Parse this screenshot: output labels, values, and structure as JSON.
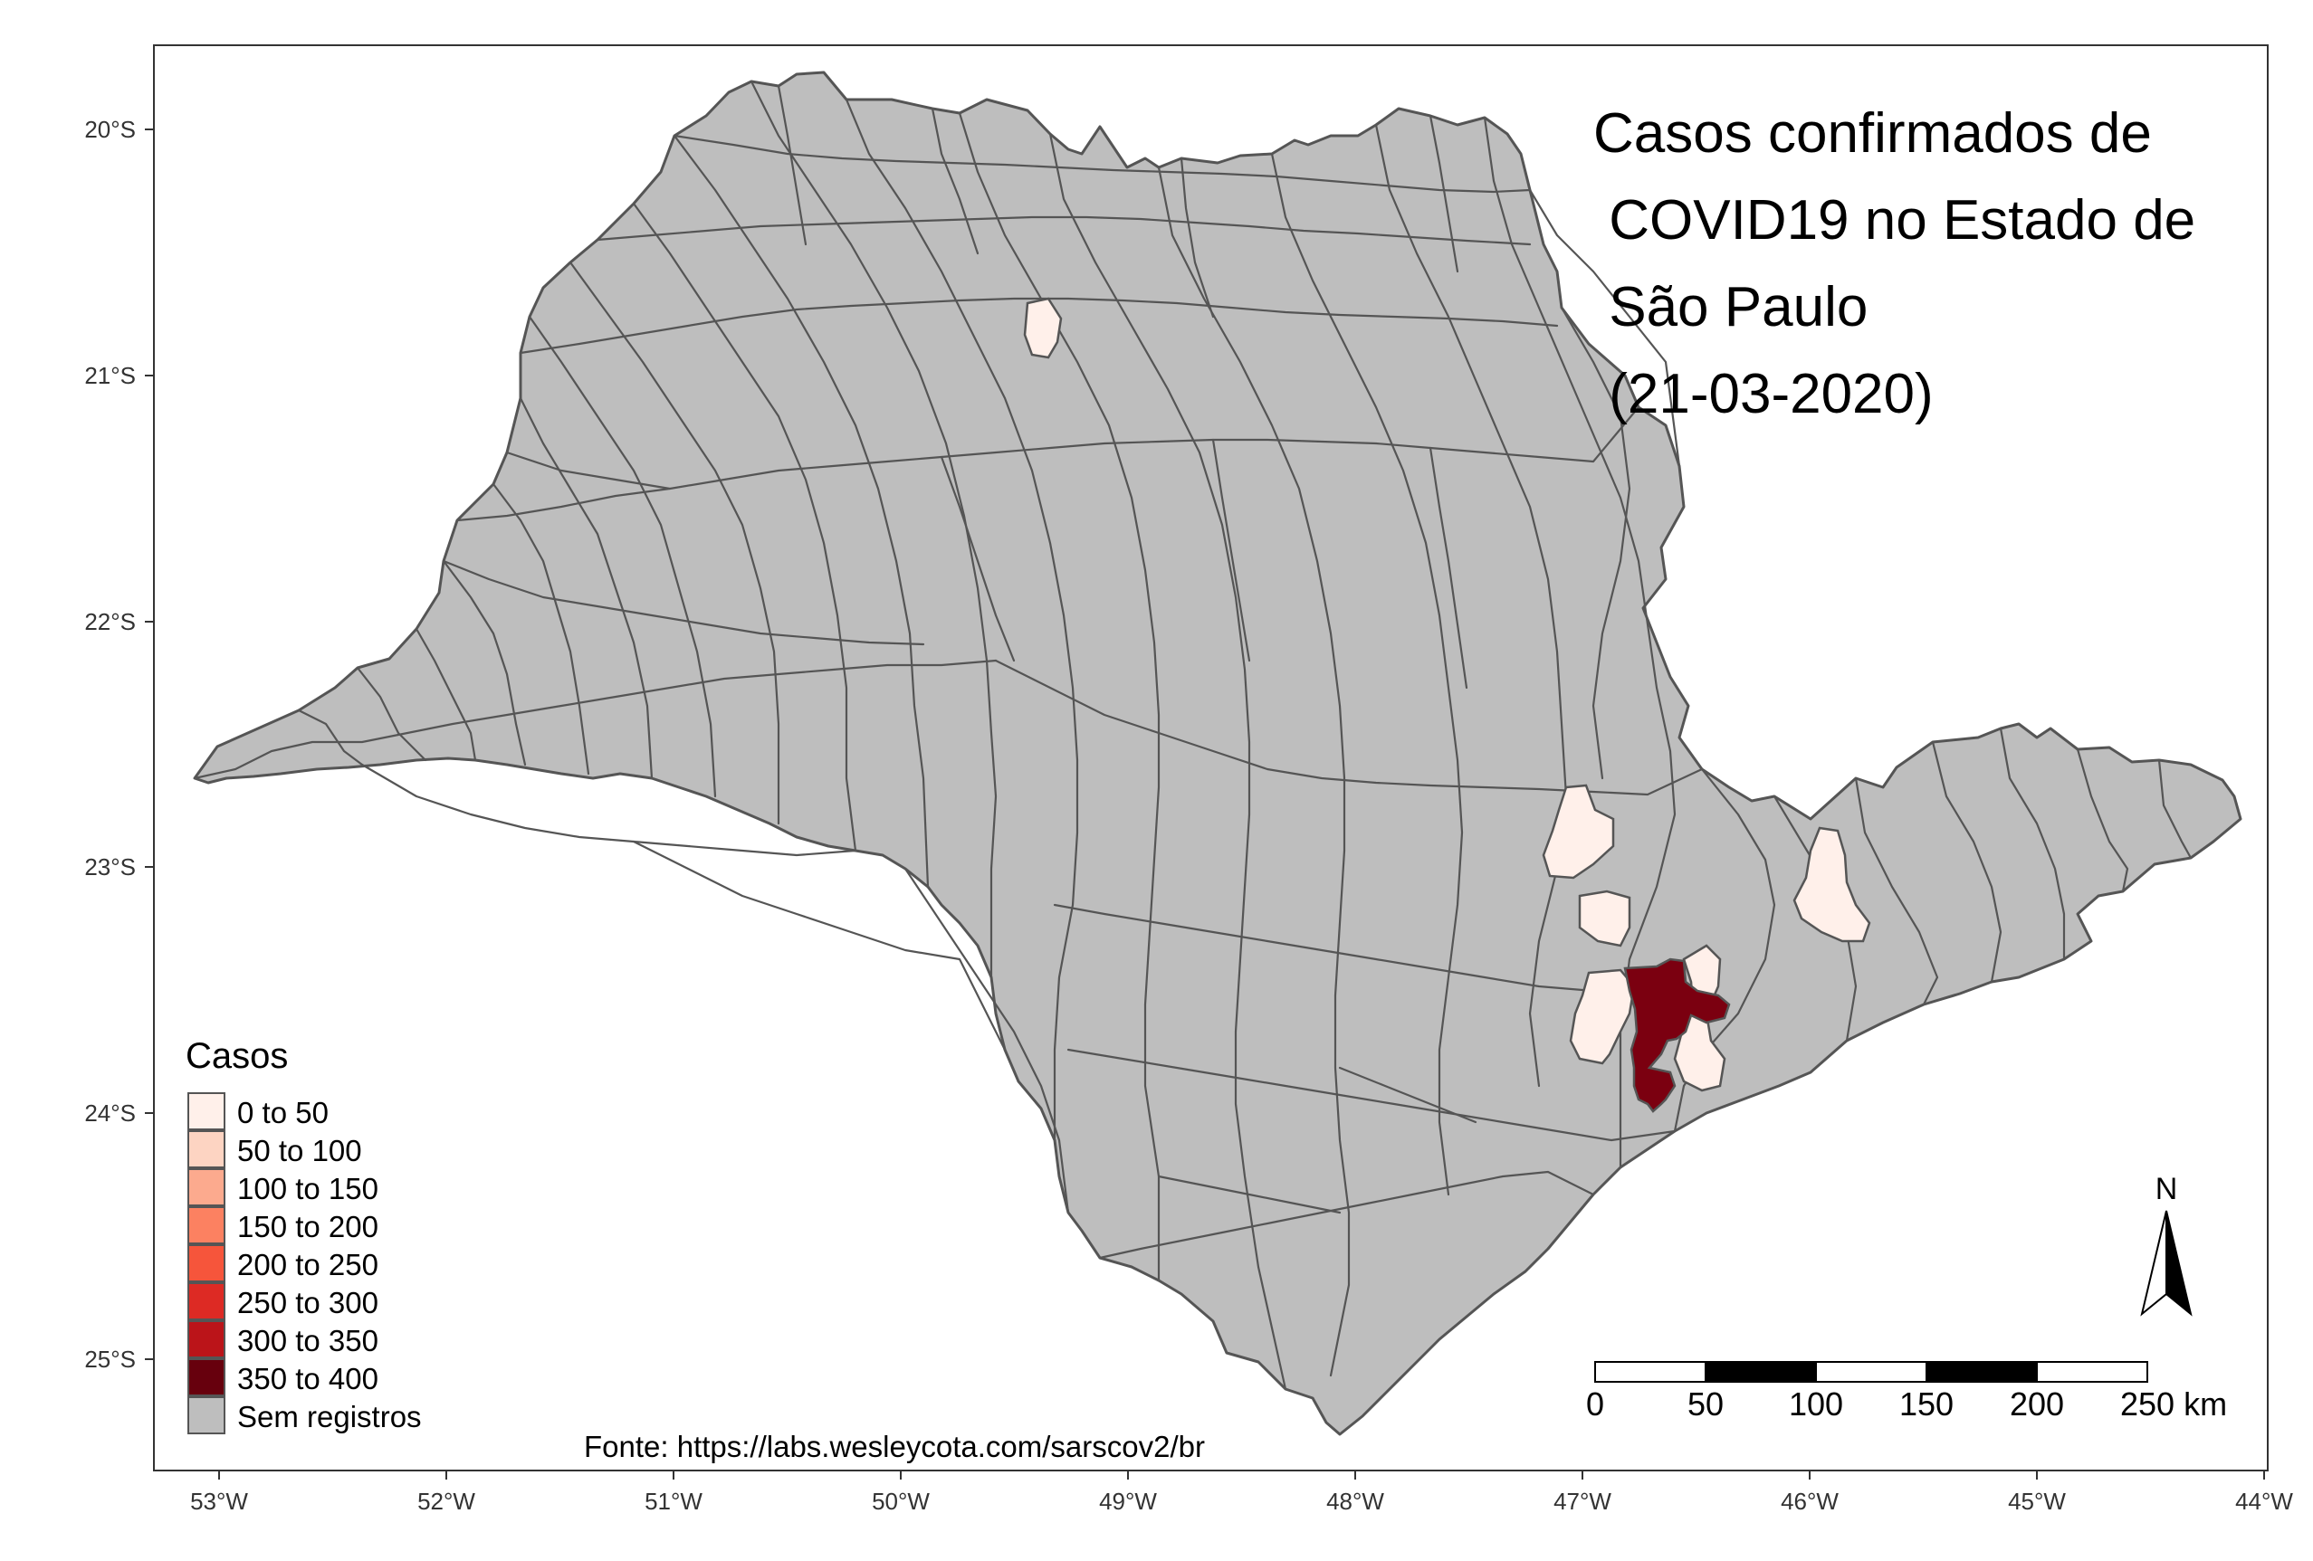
{
  "title_lines": [
    "Casos confirmados de",
    " COVID19 no Estado de",
    " São Paulo",
    " (21-03-2020)"
  ],
  "x_axis": {
    "ticks": [
      "53°W",
      "52°W",
      "51°W",
      "50°W",
      "49°W",
      "48°W",
      "47°W",
      "46°W",
      "45°W",
      "44°W"
    ],
    "range": [
      -53.3,
      -44.0
    ]
  },
  "y_axis": {
    "ticks": [
      "20°S",
      "21°S",
      "22°S",
      "23°S",
      "24°S",
      "25°S"
    ],
    "range": [
      -25.5,
      -19.65
    ]
  },
  "legend": {
    "title": "Casos",
    "items": [
      {
        "label": "0 to 50",
        "color": "#fff0ea"
      },
      {
        "label": "50 to 100",
        "color": "#fdd4c2"
      },
      {
        "label": "100 to 150",
        "color": "#fcaa8e"
      },
      {
        "label": "150 to 200",
        "color": "#fc8161"
      },
      {
        "label": "200 to 250",
        "color": "#f6553b"
      },
      {
        "label": "250 to 300",
        "color": "#dd2a24"
      },
      {
        "label": "300 to 350",
        "color": "#bb1419"
      },
      {
        "label": "350 to 400",
        "color": "#67000d"
      },
      {
        "label": "Sem registros",
        "color": "#bebebe"
      }
    ]
  },
  "scale_bar": {
    "labels": [
      "0",
      "50",
      "100",
      "150",
      "200",
      "250 km"
    ]
  },
  "north_arrow": {
    "label": "N"
  },
  "source": "Fonte: https://labs.wesleycota.com/sarscov2/br",
  "colors": {
    "municipality_fill": "#bebebe",
    "municipality_border": "#555555",
    "low_cases": "#fff0ea",
    "sao_paulo_city": "#7b0010",
    "panel_border": "#333333"
  },
  "highlighted_municipalities": [
    {
      "name": "northern municipality",
      "cases_class": "0 to 50"
    },
    {
      "name": "Campinas region",
      "cases_class": "0 to 50"
    },
    {
      "name": "Jundiaí region",
      "cases_class": "0 to 50"
    },
    {
      "name": "São José dos Campos region",
      "cases_class": "0 to 50"
    },
    {
      "name": "ABC region",
      "cases_class": "0 to 50"
    },
    {
      "name": "São Paulo",
      "cases_class": "350 to 400"
    }
  ]
}
